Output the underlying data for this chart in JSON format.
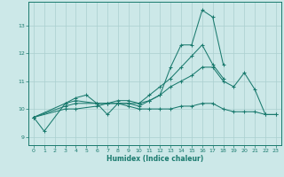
{
  "title": "",
  "xlabel": "Humidex (Indice chaleur)",
  "ylabel": "",
  "background_color": "#cce8e8",
  "grid_color": "#aacfcf",
  "line_color": "#1a7a6e",
  "xlim": [
    -0.5,
    23.5
  ],
  "ylim": [
    8.7,
    13.85
  ],
  "yticks": [
    9,
    10,
    11,
    12,
    13
  ],
  "xticks": [
    0,
    1,
    2,
    3,
    4,
    5,
    6,
    7,
    8,
    9,
    10,
    11,
    12,
    13,
    14,
    15,
    16,
    17,
    18,
    19,
    20,
    21,
    22,
    23
  ],
  "series": [
    {
      "x": [
        0,
        1,
        3,
        4,
        5,
        6,
        7,
        8,
        9,
        10,
        11,
        12,
        13,
        14,
        15,
        16,
        17,
        18
      ],
      "y": [
        9.7,
        9.2,
        10.2,
        10.4,
        10.5,
        10.2,
        9.8,
        10.2,
        10.2,
        10.1,
        10.3,
        10.5,
        11.5,
        12.3,
        12.3,
        13.55,
        13.3,
        11.6
      ]
    },
    {
      "x": [
        0,
        3,
        4,
        6,
        7,
        8,
        9,
        10,
        11,
        12,
        13,
        14,
        15,
        16,
        17,
        18
      ],
      "y": [
        9.7,
        10.2,
        10.3,
        10.2,
        10.2,
        10.2,
        10.2,
        10.2,
        10.5,
        10.8,
        11.1,
        11.5,
        11.9,
        12.3,
        11.6,
        11.1
      ]
    },
    {
      "x": [
        0,
        3,
        4,
        6,
        7,
        8,
        9,
        10,
        11,
        12,
        13,
        14,
        15,
        16,
        17,
        18,
        19,
        20,
        21,
        22,
        23
      ],
      "y": [
        9.7,
        10.1,
        10.2,
        10.2,
        10.2,
        10.3,
        10.3,
        10.2,
        10.3,
        10.5,
        10.8,
        11.0,
        11.2,
        11.5,
        11.5,
        11.0,
        10.8,
        11.3,
        10.7,
        9.8,
        9.8
      ]
    },
    {
      "x": [
        0,
        3,
        4,
        6,
        7,
        8,
        9,
        10,
        11,
        12,
        13,
        14,
        15,
        16,
        17,
        18,
        19,
        20,
        21,
        22,
        23
      ],
      "y": [
        9.7,
        10.0,
        10.0,
        10.1,
        10.2,
        10.2,
        10.1,
        10.0,
        10.0,
        10.0,
        10.0,
        10.1,
        10.1,
        10.2,
        10.2,
        10.0,
        9.9,
        9.9,
        9.9,
        9.8,
        9.8
      ]
    }
  ]
}
